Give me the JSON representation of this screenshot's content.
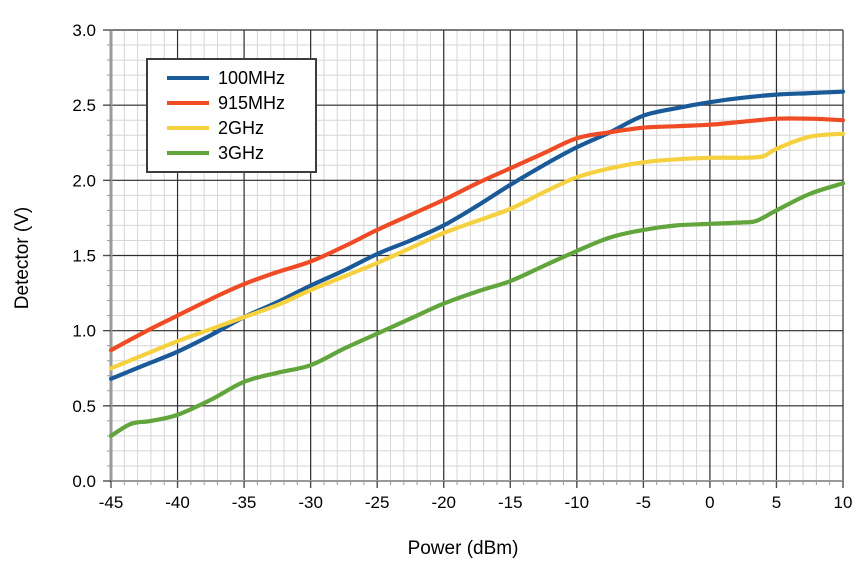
{
  "chart_data": {
    "type": "line",
    "title": "",
    "xlabel": "Power (dBm)",
    "ylabel": "Detector (V)",
    "xlim": [
      -45,
      10
    ],
    "ylim": [
      0.0,
      3.0
    ],
    "x_major_step": 5,
    "x_minor_step": 1,
    "y_major_step": 0.5,
    "y_minor_step": 0.1,
    "grid": "major+minor",
    "legend_position": "inside-top-left",
    "x_ticks": [
      "-45",
      "-40",
      "-35",
      "-30",
      "-25",
      "-20",
      "-15",
      "-10",
      "-5",
      "0",
      "5",
      "10"
    ],
    "y_ticks": [
      "0.0",
      "0.5",
      "1.0",
      "1.5",
      "2.0",
      "2.5",
      "3.0"
    ],
    "series": [
      {
        "name": "100MHz",
        "color": "#1A5A98",
        "points": [
          [
            -45,
            0.68
          ],
          [
            -42.5,
            0.77
          ],
          [
            -40,
            0.86
          ],
          [
            -37.5,
            0.97
          ],
          [
            -35,
            1.09
          ],
          [
            -32.5,
            1.19
          ],
          [
            -30,
            1.3
          ],
          [
            -27.5,
            1.4
          ],
          [
            -25,
            1.51
          ],
          [
            -22.5,
            1.6
          ],
          [
            -20,
            1.7
          ],
          [
            -17.5,
            1.83
          ],
          [
            -15,
            1.97
          ],
          [
            -12.5,
            2.1
          ],
          [
            -10,
            2.22
          ],
          [
            -7.5,
            2.32
          ],
          [
            -5,
            2.43
          ],
          [
            -2.5,
            2.48
          ],
          [
            0,
            2.52
          ],
          [
            2.5,
            2.55
          ],
          [
            5,
            2.57
          ],
          [
            7.5,
            2.58
          ],
          [
            10,
            2.59
          ]
        ]
      },
      {
        "name": "915MHz",
        "color": "#EF4B24",
        "points": [
          [
            -45,
            0.87
          ],
          [
            -42.5,
            0.99
          ],
          [
            -40,
            1.1
          ],
          [
            -37.5,
            1.21
          ],
          [
            -35,
            1.31
          ],
          [
            -32.5,
            1.39
          ],
          [
            -30,
            1.46
          ],
          [
            -27.5,
            1.56
          ],
          [
            -25,
            1.67
          ],
          [
            -22.5,
            1.77
          ],
          [
            -20,
            1.87
          ],
          [
            -17.5,
            1.98
          ],
          [
            -15,
            2.08
          ],
          [
            -12.5,
            2.18
          ],
          [
            -10,
            2.28
          ],
          [
            -7.5,
            2.32
          ],
          [
            -5,
            2.35
          ],
          [
            -2.5,
            2.36
          ],
          [
            0,
            2.37
          ],
          [
            2.5,
            2.39
          ],
          [
            5,
            2.41
          ],
          [
            7.5,
            2.41
          ],
          [
            10,
            2.4
          ]
        ]
      },
      {
        "name": "2GHz",
        "color": "#F5D13F",
        "points": [
          [
            -45,
            0.75
          ],
          [
            -42.5,
            0.84
          ],
          [
            -40,
            0.93
          ],
          [
            -37.5,
            1.01
          ],
          [
            -35,
            1.09
          ],
          [
            -32.5,
            1.17
          ],
          [
            -30,
            1.27
          ],
          [
            -27.5,
            1.36
          ],
          [
            -25,
            1.45
          ],
          [
            -22.5,
            1.55
          ],
          [
            -20,
            1.65
          ],
          [
            -17.5,
            1.73
          ],
          [
            -15,
            1.81
          ],
          [
            -12.5,
            1.92
          ],
          [
            -10,
            2.02
          ],
          [
            -7.5,
            2.08
          ],
          [
            -5,
            2.12
          ],
          [
            -2.5,
            2.14
          ],
          [
            0,
            2.15
          ],
          [
            2.5,
            2.15
          ],
          [
            4,
            2.16
          ],
          [
            5,
            2.21
          ],
          [
            7.5,
            2.29
          ],
          [
            10,
            2.31
          ]
        ]
      },
      {
        "name": "3GHz",
        "color": "#62A53D",
        "points": [
          [
            -45,
            0.3
          ],
          [
            -43.5,
            0.38
          ],
          [
            -42,
            0.4
          ],
          [
            -40,
            0.44
          ],
          [
            -37.5,
            0.54
          ],
          [
            -35,
            0.66
          ],
          [
            -32.5,
            0.72
          ],
          [
            -30,
            0.77
          ],
          [
            -27.5,
            0.88
          ],
          [
            -25,
            0.98
          ],
          [
            -22.5,
            1.08
          ],
          [
            -20,
            1.18
          ],
          [
            -17.5,
            1.26
          ],
          [
            -15,
            1.33
          ],
          [
            -12.5,
            1.43
          ],
          [
            -10,
            1.53
          ],
          [
            -7.5,
            1.62
          ],
          [
            -5,
            1.67
          ],
          [
            -2.5,
            1.7
          ],
          [
            0,
            1.71
          ],
          [
            2.5,
            1.72
          ],
          [
            3.5,
            1.73
          ],
          [
            5,
            1.8
          ],
          [
            7.5,
            1.91
          ],
          [
            10,
            1.98
          ]
        ]
      }
    ],
    "style": {
      "minor_grid_color": "#d6d6d6",
      "major_grid_color": "#2e2e2e",
      "axis_frame_color": "#9a9a9a",
      "minor_tick_color": "#999999",
      "major_tick_color": "#4d4d4d",
      "line_width": 4.2
    }
  }
}
